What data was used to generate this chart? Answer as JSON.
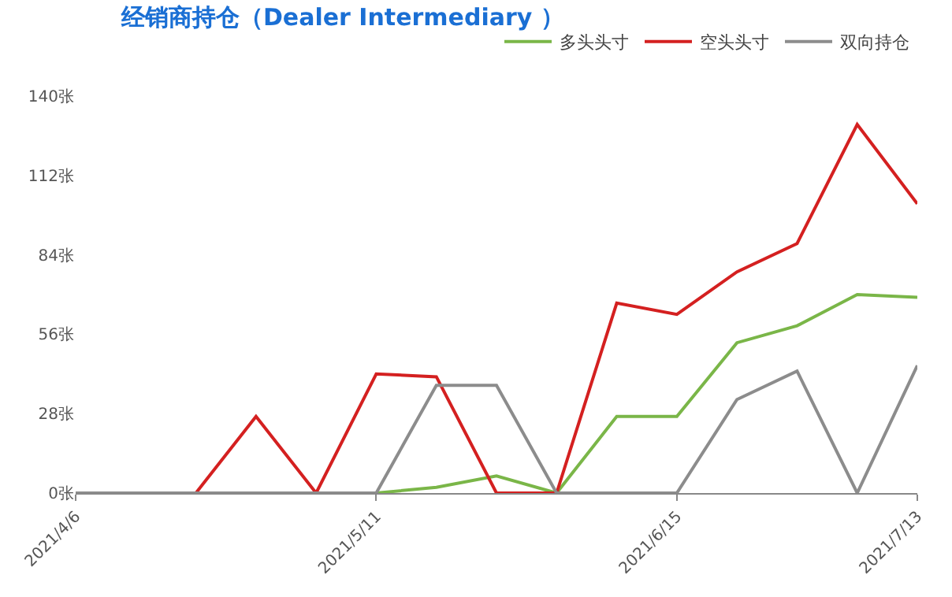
{
  "chart_data": {
    "type": "line",
    "title": "经销商持仓（Dealer Intermediary ）",
    "x": [
      "2021-04-06",
      "2021-04-13",
      "2021-04-20",
      "2021-04-27",
      "2021-05-04",
      "2021-05-11",
      "2021-05-18",
      "2021-05-25",
      "2021-06-01",
      "2021-06-08",
      "2021-06-15",
      "2021-06-22",
      "2021-06-29",
      "2021-07-06",
      "2021-07-13"
    ],
    "series": [
      {
        "name": "多头头寸",
        "color": "#7ab648",
        "values": [
          null,
          null,
          null,
          null,
          null,
          0,
          2,
          6,
          0,
          27,
          27,
          53,
          59,
          70,
          69
        ]
      },
      {
        "name": "空头头寸",
        "color": "#d42020",
        "values": [
          0,
          0,
          0,
          27,
          0,
          42,
          41,
          0,
          0,
          67,
          63,
          78,
          88,
          130,
          102
        ]
      },
      {
        "name": "双向持仓",
        "color": "#8c8c8c",
        "values": [
          0,
          0,
          0,
          0,
          0,
          0,
          38,
          38,
          0,
          0,
          0,
          33,
          43,
          0,
          45
        ]
      }
    ],
    "xlim": [
      "2021-04-06",
      "2021-07-13"
    ],
    "xticks": [
      {
        "value": "2021-04-06",
        "label": "2021/4/6"
      },
      {
        "value": "2021-05-11",
        "label": "2021/5/11"
      },
      {
        "value": "2021-06-15",
        "label": "2021/6/15"
      },
      {
        "value": "2021-07-13",
        "label": "2021/7/13"
      }
    ],
    "ylim": [
      0,
      140
    ],
    "yticks": [
      {
        "value": 0,
        "label": "0张"
      },
      {
        "value": 28,
        "label": "28张"
      },
      {
        "value": 56,
        "label": "56张"
      },
      {
        "value": 84,
        "label": "84张"
      },
      {
        "value": 112,
        "label": "112张"
      },
      {
        "value": 140,
        "label": "140张"
      }
    ],
    "grid": false,
    "legend": "top right",
    "marker": "none",
    "line_style": "solid"
  }
}
